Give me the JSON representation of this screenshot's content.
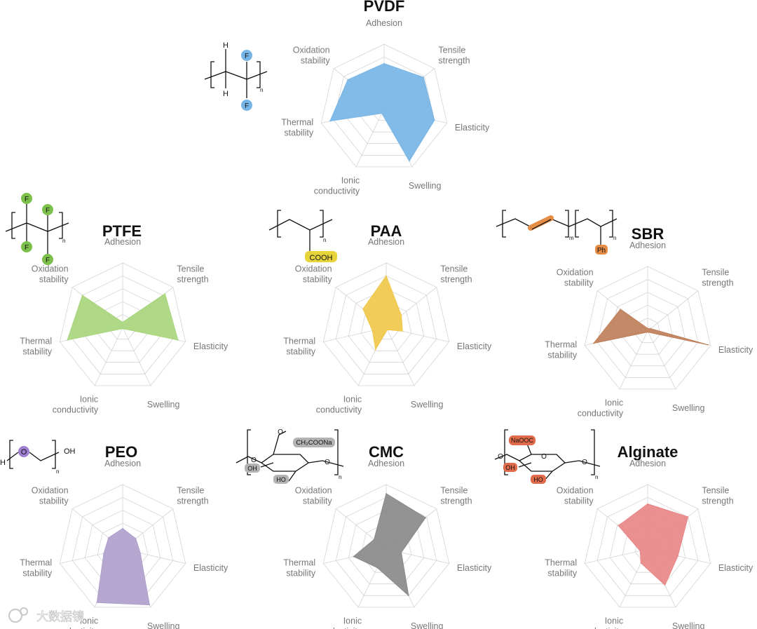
{
  "axes": [
    "Adhesion",
    "Tensile\nstrength",
    "Elasticity",
    "Swelling",
    "Ionic\nconductivity",
    "Thermal\nstability",
    "Oxidation\nstability"
  ],
  "chart_data": [
    {
      "type": "radar",
      "title": "PVDF",
      "color": "#77b5e6",
      "rmax": 5,
      "categories": [
        "Adhesion",
        "Tensile strength",
        "Elasticity",
        "Swelling",
        "Ionic conductivity",
        "Thermal stability",
        "Oxidation stability"
      ],
      "values": [
        3.5,
        3.9,
        4.0,
        4.5,
        0.4,
        4.3,
        3.6
      ]
    },
    {
      "type": "radar",
      "title": "PTFE",
      "color": "#a8d67d",
      "rmax": 5,
      "categories": [
        "Adhesion",
        "Tensile strength",
        "Elasticity",
        "Swelling",
        "Ionic conductivity",
        "Thermal stability",
        "Oxidation stability"
      ],
      "values": [
        0.4,
        4.2,
        4.4,
        0.1,
        0.1,
        4.4,
        4.0
      ]
    },
    {
      "type": "radar",
      "title": "PAA",
      "color": "#f0c84a",
      "rmax": 5,
      "categories": [
        "Adhesion",
        "Tensile strength",
        "Elasticity",
        "Swelling",
        "Ionic conductivity",
        "Thermal stability",
        "Oxidation stability"
      ],
      "values": [
        4.0,
        1.5,
        1.3,
        0.2,
        1.9,
        1.1,
        2.3
      ]
    },
    {
      "type": "radar",
      "title": "SBR",
      "color": "#bf7f5a",
      "rmax": 5,
      "categories": [
        "Adhesion",
        "Tensile strength",
        "Elasticity",
        "Swelling",
        "Ionic conductivity",
        "Thermal stability",
        "Oxidation stability"
      ],
      "values": [
        0.2,
        0.3,
        4.8,
        0.1,
        0.1,
        4.3,
        2.7
      ]
    },
    {
      "type": "radar",
      "title": "PEO",
      "color": "#b09fcc",
      "rmax": 5,
      "categories": [
        "Adhesion",
        "Tensile strength",
        "Elasticity",
        "Swelling",
        "Ionic conductivity",
        "Thermal stability",
        "Oxidation stability"
      ],
      "values": [
        1.6,
        1.3,
        1.4,
        4.8,
        4.6,
        1.5,
        1.4
      ]
    },
    {
      "type": "radar",
      "title": "CMC",
      "color": "#8a8a8a",
      "rmax": 5,
      "categories": [
        "Adhesion",
        "Tensile strength",
        "Elasticity",
        "Swelling",
        "Ionic conductivity",
        "Thermal stability",
        "Oxidation stability"
      ],
      "values": [
        4.3,
        3.9,
        1.2,
        4.0,
        1.6,
        2.6,
        1.2
      ]
    },
    {
      "type": "radar",
      "title": "Alginate",
      "color": "#e98787",
      "rmax": 5,
      "categories": [
        "Adhesion",
        "Tensile strength",
        "Elasticity",
        "Swelling",
        "Ionic conductivity",
        "Thermal stability",
        "Oxidation stability"
      ],
      "values": [
        3.5,
        4.0,
        2.4,
        3.1,
        1.2,
        0.6,
        2.9
      ]
    }
  ],
  "structures": {
    "pvdf": {
      "h": "H",
      "f": "F",
      "n": "n"
    },
    "ptfe": {
      "f": "F",
      "n": "n"
    },
    "paa": {
      "group": "COOH",
      "n": "n"
    },
    "sbr": {
      "ph": "Ph",
      "m": "m",
      "n": "n"
    },
    "peo": {
      "h": "H",
      "o": "O",
      "oh": "OH",
      "n": "n"
    },
    "cmc": {
      "o": "O",
      "sub": "CH₂COONa",
      "oh": "OH",
      "ho": "HO",
      "n": "n"
    },
    "alginate": {
      "o": "O",
      "sub": "NaOOC",
      "oh": "OH",
      "ho": "HO",
      "n": "n"
    }
  },
  "colors": {
    "grid": "#d4d4d4",
    "label": "#777777"
  },
  "watermark": "大数据镜"
}
